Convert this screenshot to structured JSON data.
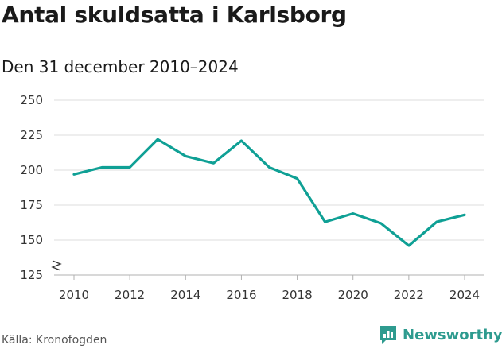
{
  "title": "Antal skuldsatta i Karlsborg",
  "subtitle": "Den 31 december 2010–2024",
  "source": "Källa: Kronofogden",
  "brand": {
    "name": "Newsworthy",
    "icon": "newsworthy-logo-icon",
    "color": "#2e9b8f"
  },
  "colors": {
    "line": "#0fa095",
    "grid": "#dddddd",
    "text": "#333333"
  },
  "chart_data": {
    "type": "line",
    "x": [
      2010,
      2011,
      2012,
      2013,
      2014,
      2015,
      2016,
      2017,
      2018,
      2019,
      2020,
      2021,
      2022,
      2023,
      2024
    ],
    "series": [
      {
        "values": [
          197,
          202,
          202,
          222,
          210,
          205,
          221,
          202,
          194,
          163,
          169,
          162,
          146,
          163,
          168
        ]
      }
    ],
    "x_ticks": [
      "2010",
      "2012",
      "2014",
      "2016",
      "2018",
      "2020",
      "2022",
      "2024"
    ],
    "y_ticks": [
      "125",
      "150",
      "175",
      "200",
      "225",
      "250"
    ],
    "ylim": [
      125,
      250
    ],
    "xlim": [
      2010,
      2024
    ],
    "y_axis_break": true,
    "grid": true
  }
}
